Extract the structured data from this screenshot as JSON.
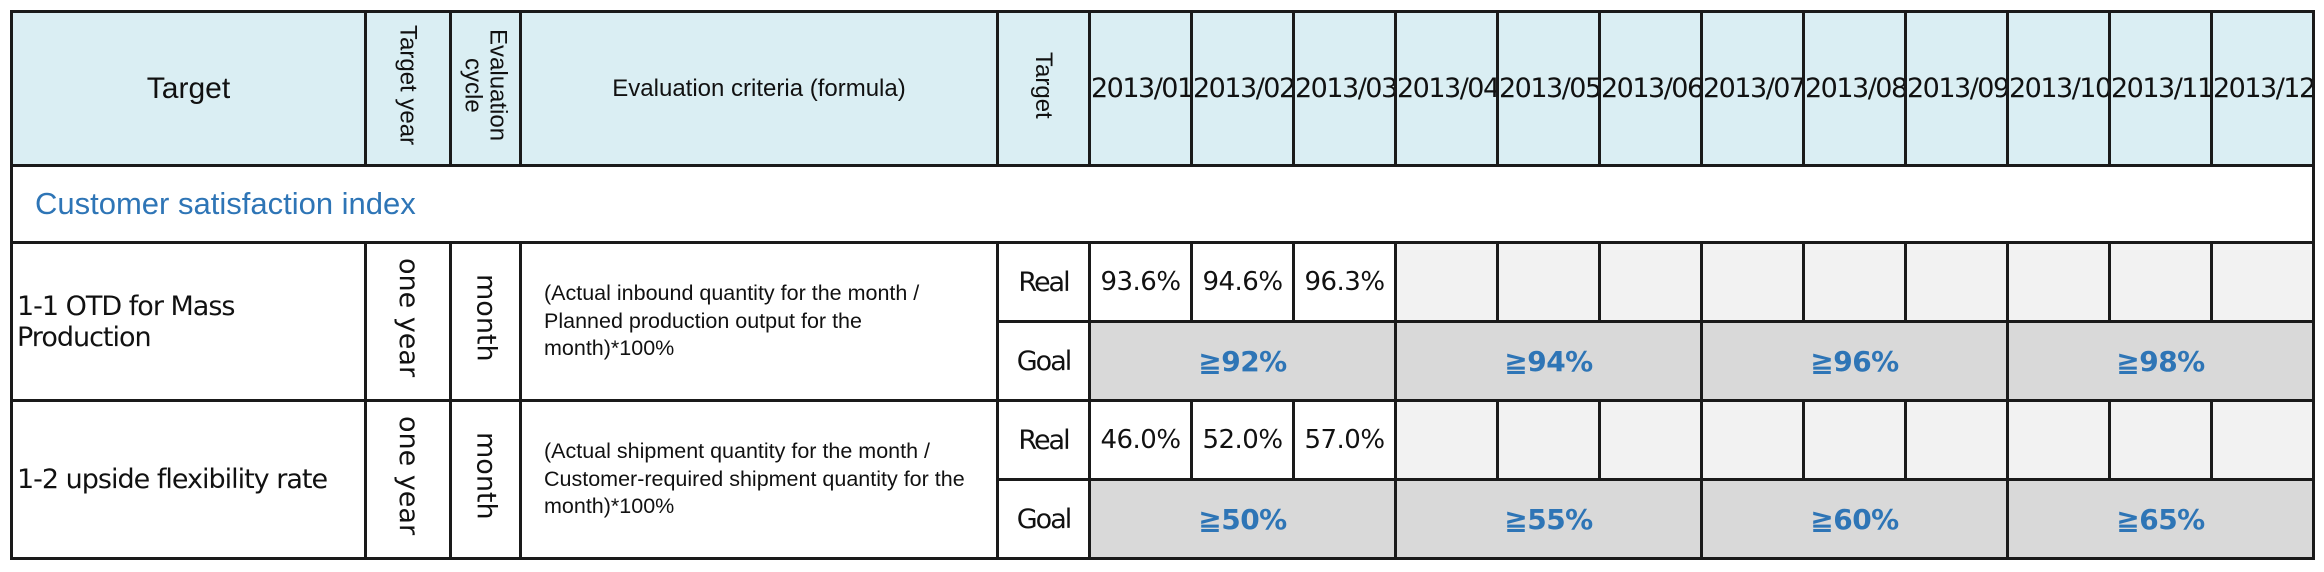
{
  "header": {
    "target": "Target",
    "target_year": "Target year",
    "evaluation_cycle": "Evaluation cycle",
    "evaluation_criteria": "Evaluation criteria (formula)",
    "target_kind": "Target",
    "months": [
      "2013/01",
      "2013/02",
      "2013/03",
      "2013/04",
      "2013/05",
      "2013/06",
      "2013/07",
      "2013/08",
      "2013/09",
      "2013/10",
      "2013/11",
      "2013/12"
    ]
  },
  "section": {
    "title": "Customer satisfaction index"
  },
  "rows": [
    {
      "name": "1-1 OTD for Mass Production",
      "target_year": "one year",
      "cycle": "month",
      "formula": "(Actual inbound quantity for the month / Planned production output for the month)*100%",
      "real_label": "Real",
      "goal_label": "Goal",
      "actuals": [
        "93.6%",
        "94.6%",
        "96.3%",
        "",
        "",
        "",
        "",
        "",
        "",
        "",
        "",
        ""
      ],
      "goals": [
        "≧92%",
        "≧94%",
        "≧96%",
        "≧98%"
      ]
    },
    {
      "name": "1-2 upside flexibility rate",
      "target_year": "one year",
      "cycle": "month",
      "formula": "(Actual shipment quantity for the month / Customer-required shipment quantity for the month)*100%",
      "real_label": "Real",
      "goal_label": "Goal",
      "actuals": [
        "46.0%",
        "52.0%",
        "57.0%",
        "",
        "",
        "",
        "",
        "",
        "",
        "",
        "",
        ""
      ],
      "goals": [
        "≧50%",
        "≧55%",
        "≧60%",
        "≧65%"
      ]
    }
  ]
}
